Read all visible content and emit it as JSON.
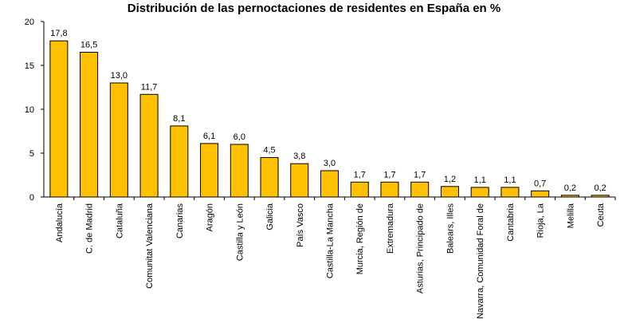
{
  "chart_data": {
    "type": "bar",
    "title": "Distribución de las pernoctaciones de residentes en España en %",
    "xlabel": "",
    "ylabel": "",
    "ylim": [
      0,
      20
    ],
    "yticks": [
      "0",
      "5",
      "10",
      "15",
      "20"
    ],
    "grid": false,
    "bar_color": "#FFC000",
    "categories": [
      "Andalucía",
      "C. de Madrid",
      "Cataluña",
      "Comunitat Valenciana",
      "Canarias",
      "Aragón",
      "Castilla y León",
      "Galicia",
      "País Vasco",
      "Castilla-La Mancha",
      "Murcia, Región de",
      "Extremadura",
      "Asturias, Principado de",
      "Balears, Illes",
      "Navarra, Comunidad Foral de",
      "Cantabria",
      "Rioja, La",
      "Melilla",
      "Ceuta"
    ],
    "values": [
      17.8,
      16.5,
      13.0,
      11.7,
      8.1,
      6.1,
      6.0,
      4.5,
      3.8,
      3.0,
      1.7,
      1.7,
      1.7,
      1.2,
      1.1,
      1.1,
      0.7,
      0.2,
      0.2
    ],
    "value_labels": [
      "17,8",
      "16,5",
      "13,0",
      "11,7",
      "8,1",
      "6,1",
      "6,0",
      "4,5",
      "3,8",
      "3,0",
      "1,7",
      "1,7",
      "1,7",
      "1,2",
      "1,1",
      "1,1",
      "0,7",
      "0,2",
      "0,2"
    ]
  }
}
